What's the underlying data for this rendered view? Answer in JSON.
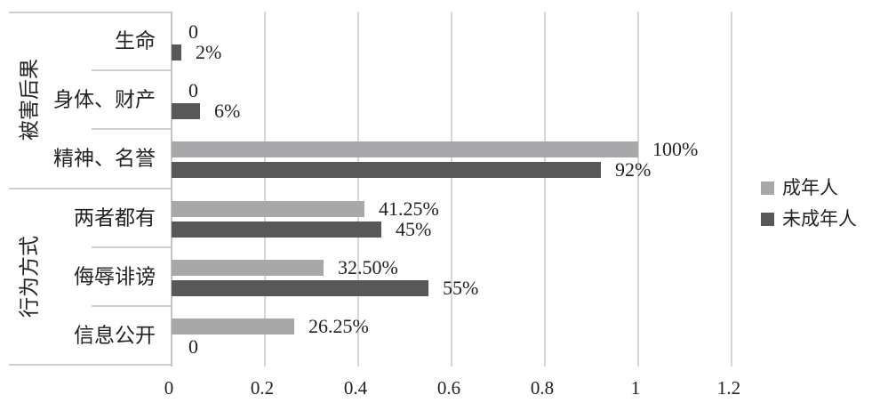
{
  "chart_data": {
    "type": "bar",
    "orientation": "horizontal",
    "axis_groups": [
      {
        "label": "被害后果",
        "categories": [
          "生命",
          "身体、财产",
          "精神、名誉"
        ]
      },
      {
        "label": "行为方式",
        "categories": [
          "两者都有",
          "侮辱诽谤",
          "信息公开"
        ]
      }
    ],
    "categories": [
      "生命",
      "身体、财产",
      "精神、名誉",
      "两者都有",
      "侮辱诽谤",
      "信息公开"
    ],
    "series": [
      {
        "name": "成年人",
        "color": "#a8a8ab",
        "values": [
          0,
          0,
          1,
          0.4125,
          0.325,
          0.2625
        ],
        "data_labels": [
          "0",
          "0",
          "100%",
          "41.25%",
          "32.50%",
          "26.25%"
        ]
      },
      {
        "name": "未成年人",
        "color": "#58585a",
        "values": [
          0.02,
          0.06,
          0.92,
          0.45,
          0.55,
          0
        ],
        "data_labels": [
          "2%",
          "6%",
          "92%",
          "45%",
          "55%",
          "0"
        ]
      }
    ],
    "x_axis": {
      "min": 0,
      "max": 1.2,
      "ticks": [
        {
          "label": "0",
          "value": 0
        },
        {
          "label": "0.2",
          "value": 0.2
        },
        {
          "label": "0.4",
          "value": 0.4
        },
        {
          "label": "0.6",
          "value": 0.6
        },
        {
          "label": "0.8",
          "value": 0.8
        },
        {
          "label": "1",
          "value": 1
        },
        {
          "label": "1.2",
          "value": 1.2
        }
      ]
    },
    "legend": {
      "position": "right",
      "entries": [
        "成年人",
        "未成年人"
      ]
    },
    "grid": true,
    "colors": {
      "gridline": "#d6d6d6",
      "axis_line": "#c4c4c4",
      "label_border": "#cfcfcf",
      "text": "#222222",
      "background": "#ffffff"
    }
  }
}
